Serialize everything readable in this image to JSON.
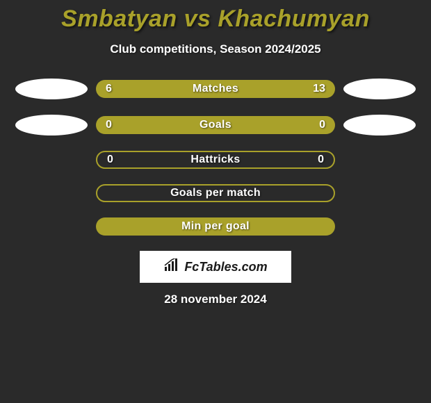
{
  "title": {
    "text": "Smbatyan vs Khachumyan",
    "color": "#a9a12a"
  },
  "subtitle": "Club competitions, Season 2024/2025",
  "background_color": "#2a2a2a",
  "oval_colors": {
    "left1": "#ffffff",
    "right1": "#ffffff",
    "left2": "#ffffff",
    "right2": "#ffffff"
  },
  "bars": [
    {
      "label": "Matches",
      "left": "6",
      "right": "13",
      "style": "solid",
      "color": "#a9a12a",
      "has_ovals": true
    },
    {
      "label": "Goals",
      "left": "0",
      "right": "0",
      "style": "solid",
      "color": "#a9a12a",
      "has_ovals": true
    },
    {
      "label": "Hattricks",
      "left": "0",
      "right": "0",
      "style": "hollow",
      "color": "#a9a12a",
      "has_ovals": false
    },
    {
      "label": "Goals per match",
      "left": "",
      "right": "",
      "style": "hollow",
      "color": "#a9a12a",
      "has_ovals": false
    },
    {
      "label": "Min per goal",
      "left": "",
      "right": "",
      "style": "solid",
      "color": "#a9a12a",
      "has_ovals": false
    }
  ],
  "logo": {
    "text": "FcTables.com",
    "icon_color": "#1a1a1a",
    "box_bg": "#ffffff"
  },
  "date": "28 november 2024"
}
